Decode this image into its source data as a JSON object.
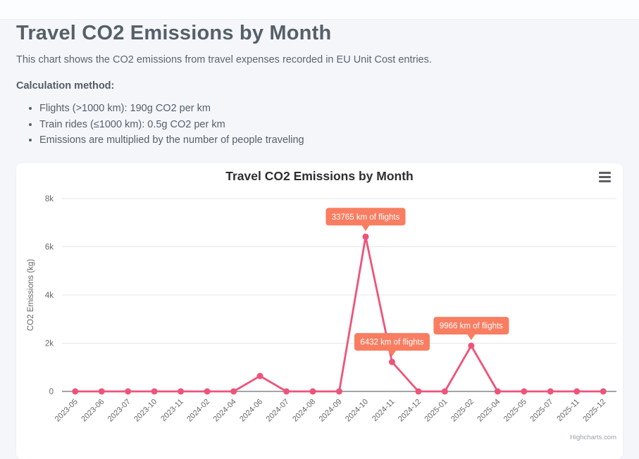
{
  "page": {
    "title": "Travel CO2 Emissions by Month",
    "subtitle": "This chart shows the CO2 emissions from travel expenses recorded in EU Unit Cost entries.",
    "calculation_method_label": "Calculation method:",
    "bullets": [
      "Flights (>1000 km): 190g CO2 per km",
      "Train rides (≤1000 km): 0.5g CO2 per km",
      "Emissions are multiplied by the number of people traveling"
    ]
  },
  "chart": {
    "title": "Travel CO2 Emissions by Month",
    "menu_icon": "hamburger-icon",
    "credits": "Highcharts.com"
  },
  "chart_data": {
    "type": "line",
    "title": "Travel CO2 Emissions by Month",
    "xlabel": "",
    "ylabel": "CO2 Emissions (kg)",
    "ylim": [
      0,
      8000
    ],
    "grid": true,
    "legend": false,
    "yticks": {
      "values": [
        0,
        2000,
        4000,
        6000,
        8000
      ],
      "labels": [
        "0",
        "2k",
        "4k",
        "6k",
        "8k"
      ]
    },
    "categories": [
      "2023-05",
      "2023-06",
      "2023-07",
      "2023-10",
      "2023-11",
      "2024-02",
      "2024-04",
      "2024-06",
      "2024-07",
      "2024-08",
      "2024-09",
      "2024-10",
      "2024-11",
      "2024-12",
      "2025-01",
      "2025-02",
      "2025-04",
      "2025-05",
      "2025-07",
      "2025-11",
      "2025-12"
    ],
    "values": [
      0,
      0,
      0,
      0,
      0,
      0,
      0,
      640,
      0,
      0,
      0,
      6415,
      1222,
      0,
      0,
      1894,
      0,
      0,
      0,
      0,
      0
    ],
    "annotations": [
      {
        "category": "2024-10",
        "index": 11,
        "text": "33765 km of flights"
      },
      {
        "category": "2024-11",
        "index": 12,
        "text": "6432 km of flights"
      },
      {
        "category": "2025-02",
        "index": 15,
        "text": "9966 km of flights"
      }
    ],
    "series_color": "#ee537a",
    "annotation_bg": "#f87d61",
    "annotation_text_color": "#ffffff",
    "colors": {
      "grid": "#e7e7e7",
      "axis": "#454a52",
      "tick": "#666666",
      "chart_title": "#2e2e2e",
      "credits": "#9aa0a6"
    }
  }
}
